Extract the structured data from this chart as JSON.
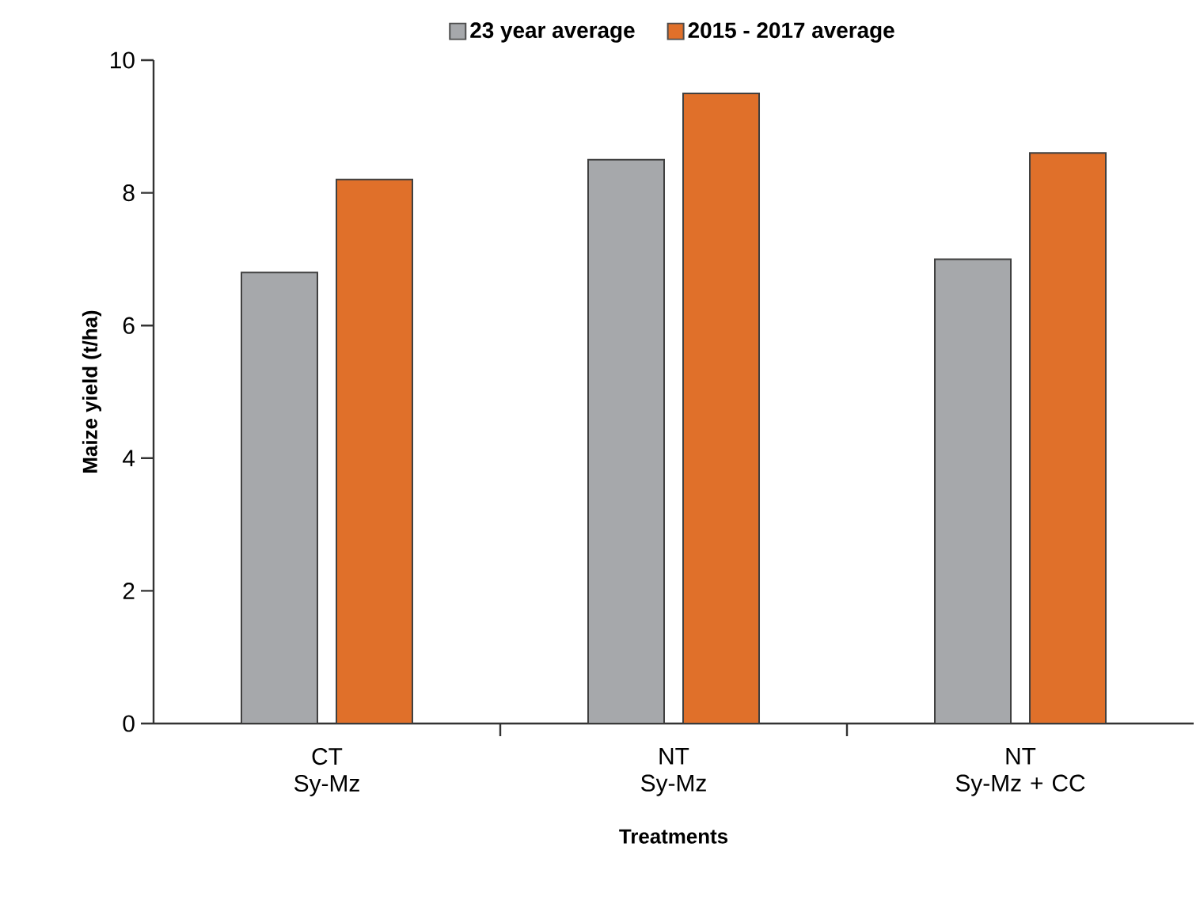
{
  "chart_data": {
    "type": "bar",
    "xlabel": "Treatments",
    "ylabel": "Maize yield (t/ha)",
    "categories": [
      "CT\nSy-Mz",
      "NT\nSy-Mz",
      "NT\nSy-Mz + CC"
    ],
    "series": [
      {
        "name": "23 year average",
        "color": "#a6a8ab",
        "values": [
          6.8,
          8.5,
          7.0
        ]
      },
      {
        "name": "2015 - 2017 average",
        "color": "#e0702a",
        "values": [
          8.2,
          9.5,
          8.6
        ]
      }
    ],
    "ylim": [
      0,
      10
    ],
    "yticks": [
      0,
      2,
      4,
      6,
      8,
      10
    ],
    "legend": "top"
  }
}
